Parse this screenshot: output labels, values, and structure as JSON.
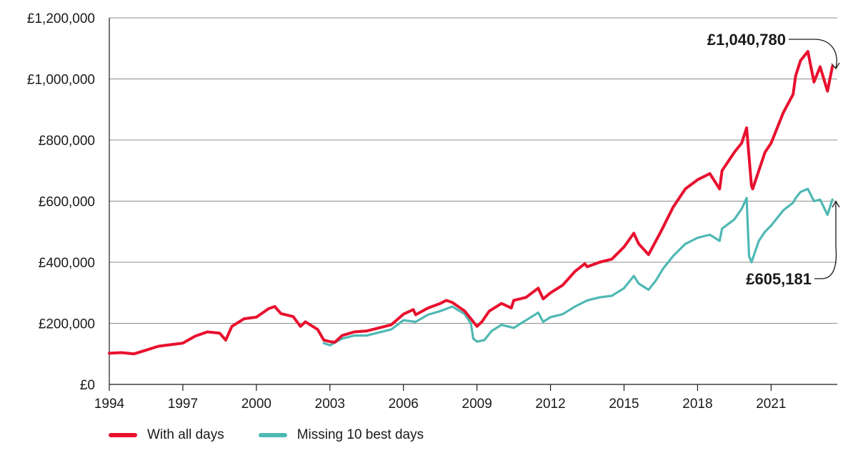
{
  "chart_data": {
    "type": "line",
    "title": "",
    "xlabel": "",
    "ylabel": "",
    "ylim": [
      0,
      1200000
    ],
    "xlim": [
      1994,
      2023.7
    ],
    "grid": true,
    "y_ticks": [
      0,
      200000,
      400000,
      600000,
      800000,
      1000000,
      1200000
    ],
    "y_tick_labels": [
      "£0",
      "£200,000",
      "£400,000",
      "£600,000",
      "£800,000",
      "£1,000,000",
      "£1,200,000"
    ],
    "x_ticks": [
      1994,
      1997,
      2000,
      2003,
      2006,
      2009,
      2012,
      2015,
      2018,
      2021
    ],
    "x_tick_labels": [
      "1994",
      "1997",
      "2000",
      "2003",
      "2006",
      "2009",
      "2012",
      "2015",
      "2018",
      "2021"
    ],
    "legend_position": "bottom-left",
    "series": [
      {
        "name": "With all days",
        "color": "#E8102E",
        "x": [
          1994.0,
          1994.5,
          1995.0,
          1995.5,
          1996.0,
          1996.5,
          1997.0,
          1997.5,
          1998.0,
          1998.5,
          1998.75,
          1999.0,
          1999.5,
          2000.0,
          2000.5,
          2000.75,
          2001.0,
          2001.5,
          2001.8,
          2002.0,
          2002.5,
          2002.75,
          2003.0,
          2003.2,
          2003.5,
          2004.0,
          2004.5,
          2005.0,
          2005.5,
          2006.0,
          2006.4,
          2006.5,
          2007.0,
          2007.5,
          2007.75,
          2008.0,
          2008.5,
          2008.8,
          2009.0,
          2009.2,
          2009.5,
          2010.0,
          2010.4,
          2010.5,
          2011.0,
          2011.5,
          2011.7,
          2012.0,
          2012.5,
          2013.0,
          2013.4,
          2013.5,
          2014.0,
          2014.5,
          2015.0,
          2015.4,
          2015.6,
          2016.0,
          2016.2,
          2016.5,
          2017.0,
          2017.5,
          2018.0,
          2018.5,
          2018.9,
          2019.0,
          2019.5,
          2019.8,
          2020.0,
          2020.2,
          2020.25,
          2020.5,
          2020.75,
          2021.0,
          2021.5,
          2021.9,
          2022.0,
          2022.2,
          2022.5,
          2022.75,
          2023.0,
          2023.3,
          2023.5
        ],
        "values": [
          102000,
          104000,
          100000,
          112000,
          125000,
          130000,
          135000,
          158000,
          172000,
          168000,
          145000,
          190000,
          215000,
          220000,
          248000,
          255000,
          232000,
          222000,
          190000,
          205000,
          180000,
          145000,
          140000,
          138000,
          160000,
          172000,
          175000,
          185000,
          195000,
          230000,
          245000,
          228000,
          250000,
          265000,
          275000,
          268000,
          240000,
          210000,
          190000,
          205000,
          240000,
          265000,
          250000,
          275000,
          285000,
          315000,
          280000,
          300000,
          325000,
          370000,
          395000,
          385000,
          400000,
          410000,
          450000,
          495000,
          460000,
          425000,
          455000,
          500000,
          580000,
          640000,
          670000,
          690000,
          640000,
          700000,
          760000,
          790000,
          840000,
          650000,
          640000,
          700000,
          760000,
          790000,
          890000,
          950000,
          1010000,
          1060000,
          1090000,
          990000,
          1040000,
          960000,
          1040780
        ]
      },
      {
        "name": "Missing 10 best days",
        "color": "#4EB8B4",
        "x": [
          2002.75,
          2003.0,
          2003.5,
          2004.0,
          2004.5,
          2005.0,
          2005.5,
          2006.0,
          2006.5,
          2007.0,
          2007.5,
          2008.0,
          2008.5,
          2008.75,
          2008.85,
          2009.0,
          2009.3,
          2009.6,
          2010.0,
          2010.5,
          2011.0,
          2011.5,
          2011.7,
          2012.0,
          2012.5,
          2013.0,
          2013.5,
          2014.0,
          2014.5,
          2015.0,
          2015.4,
          2015.6,
          2016.0,
          2016.3,
          2016.6,
          2017.0,
          2017.5,
          2018.0,
          2018.5,
          2018.9,
          2019.0,
          2019.5,
          2019.8,
          2020.0,
          2020.1,
          2020.2,
          2020.5,
          2020.75,
          2021.0,
          2021.5,
          2021.9,
          2022.0,
          2022.2,
          2022.5,
          2022.75,
          2023.0,
          2023.3,
          2023.5
        ],
        "values": [
          135000,
          128000,
          150000,
          160000,
          160000,
          170000,
          180000,
          210000,
          205000,
          228000,
          240000,
          255000,
          230000,
          200000,
          150000,
          140000,
          145000,
          175000,
          195000,
          185000,
          210000,
          235000,
          205000,
          220000,
          230000,
          255000,
          275000,
          285000,
          290000,
          315000,
          355000,
          330000,
          310000,
          340000,
          380000,
          420000,
          460000,
          480000,
          490000,
          470000,
          510000,
          540000,
          575000,
          610000,
          420000,
          400000,
          470000,
          500000,
          520000,
          570000,
          595000,
          610000,
          630000,
          640000,
          600000,
          605000,
          555000,
          605181
        ]
      }
    ],
    "annotations": [
      {
        "series": 0,
        "text": "£1,040,780"
      },
      {
        "series": 1,
        "text": "£605,181"
      }
    ]
  }
}
